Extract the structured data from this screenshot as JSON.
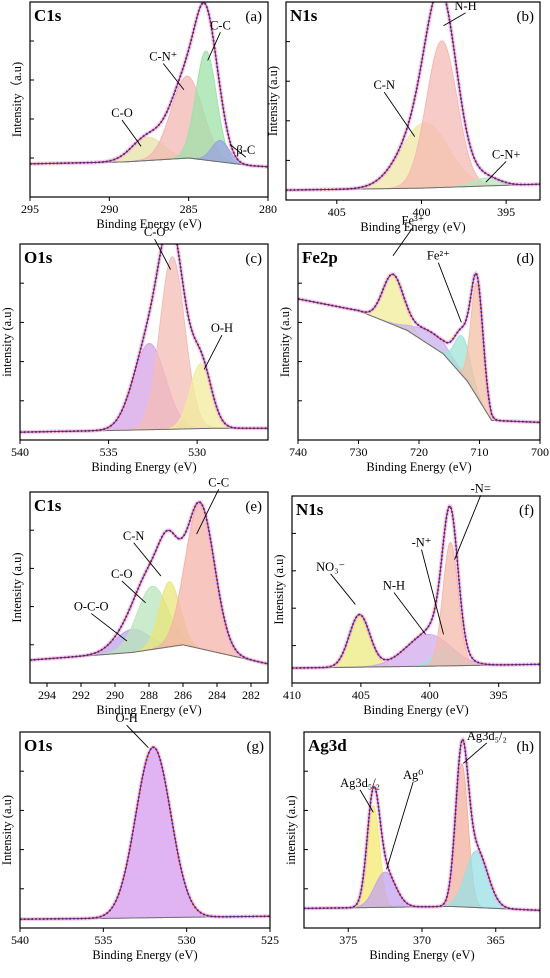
{
  "chart_data": [
    {
      "panel": "a",
      "letter": "(a)",
      "title": "C1s",
      "type": "area",
      "xlabel": "Binding Energy (eV)",
      "ylabel": "Intensity（a.u)",
      "xlim": [
        295,
        280
      ],
      "xticks": [
        295,
        290,
        285,
        280
      ],
      "ylim": [
        0,
        1
      ],
      "baseline": [
        [
          295,
          0.17
        ],
        [
          289,
          0.18
        ],
        [
          285,
          0.2
        ],
        [
          281,
          0.16
        ],
        [
          280,
          0.155
        ]
      ],
      "peaks": [
        {
          "label": "C-O",
          "center": 287.6,
          "height": 0.12,
          "width": 1.0,
          "color": "#e6e3a6"
        },
        {
          "label": "C-N⁺",
          "center": 285.1,
          "height": 0.42,
          "width": 1.0,
          "color": "#f2b8b3"
        },
        {
          "label": "C-C",
          "center": 283.9,
          "height": 0.56,
          "width": 0.65,
          "color": "#9de2a8"
        },
        {
          "label": "β-C",
          "center": 283.0,
          "height": 0.11,
          "width": 0.55,
          "color": "#9aa3e3"
        }
      ],
      "annotations": [
        {
          "text": "C-O",
          "x": 289.2,
          "y": 0.41,
          "ax": 288.0,
          "ay": 0.26
        },
        {
          "text": "C-N⁺",
          "x": 286.6,
          "y": 0.7,
          "ax": 285.3,
          "ay": 0.55
        },
        {
          "text": "C-C",
          "x": 283.0,
          "y": 0.86,
          "ax": 283.8,
          "ay": 0.7
        },
        {
          "text": "β-C",
          "x": 281.4,
          "y": 0.22,
          "ax": 282.4,
          "ay": 0.27
        }
      ]
    },
    {
      "panel": "b",
      "letter": "(b)",
      "title": "N1s",
      "type": "area",
      "xlabel": "Binding Energy (eV)",
      "ylabel": "Intensity (a.u)",
      "xlim": [
        408,
        393
      ],
      "xticks": [
        405,
        400,
        395
      ],
      "ylim": [
        0,
        1
      ],
      "baseline": [
        [
          408,
          0.05
        ],
        [
          400,
          0.06
        ],
        [
          393,
          0.08
        ]
      ],
      "peaks": [
        {
          "label": "C-N",
          "center": 399.8,
          "height": 0.33,
          "width": 1.4,
          "color": "#f1e6a6"
        },
        {
          "label": "N-H",
          "center": 398.8,
          "height": 0.74,
          "width": 0.9,
          "color": "#f4b9b4"
        },
        {
          "label": "C-N+",
          "center": 396.2,
          "height": 0.04,
          "width": 0.8,
          "color": "#b8e6c0"
        }
      ],
      "annotations": [
        {
          "text": "C-N",
          "x": 402.2,
          "y": 0.56,
          "ax": 400.4,
          "ay": 0.32
        },
        {
          "text": "N-H",
          "x": 397.4,
          "y": 0.96,
          "ax": 398.7,
          "ay": 0.88
        },
        {
          "text": "C-N+",
          "x": 395.0,
          "y": 0.21,
          "ax": 396.2,
          "ay": 0.09
        }
      ]
    },
    {
      "panel": "c",
      "letter": "(c)",
      "title": "O1s",
      "type": "area",
      "xlabel": "Binding Energy (eV)",
      "ylabel": "intensity (a.u)",
      "xlim": [
        540,
        526
      ],
      "xticks": [
        540,
        535,
        530
      ],
      "ylim": [
        0,
        1
      ],
      "baseline": [
        [
          540,
          0.04
        ],
        [
          534,
          0.05
        ],
        [
          529,
          0.06
        ],
        [
          526,
          0.06
        ]
      ],
      "peaks": [
        {
          "label": "",
          "center": 532.7,
          "height": 0.44,
          "width": 0.9,
          "color": "#d6a3e6"
        },
        {
          "label": "C-O",
          "center": 531.4,
          "height": 0.88,
          "width": 0.7,
          "color": "#f4bcb6"
        },
        {
          "label": "O-H",
          "center": 529.8,
          "height": 0.33,
          "width": 0.6,
          "color": "#f2ec9c"
        }
      ],
      "annotations": [
        {
          "text": "C-O",
          "x": 532.4,
          "y": 1.04,
          "ax": 531.5,
          "ay": 0.87
        },
        {
          "text": "O-H",
          "x": 528.6,
          "y": 0.55,
          "ax": 529.6,
          "ay": 0.36
        }
      ]
    },
    {
      "panel": "d",
      "letter": "(d)",
      "title": "Fe2p",
      "type": "area",
      "xlabel": "Binding Energy (eV)",
      "ylabel": "Intensity (a.u)",
      "xlim": [
        740,
        700
      ],
      "xticks": [
        740,
        730,
        720,
        710,
        700
      ],
      "ylim": [
        0,
        1
      ],
      "baseline": [
        [
          740,
          0.72
        ],
        [
          730,
          0.66
        ],
        [
          722,
          0.56
        ],
        [
          716,
          0.44
        ],
        [
          712,
          0.3
        ],
        [
          710,
          0.2
        ],
        [
          708,
          0.1
        ],
        [
          700,
          0.09
        ]
      ],
      "peaks": [
        {
          "label": "",
          "center": 724.3,
          "height": 0.25,
          "width": 1.7,
          "color": "#f1ec99"
        },
        {
          "label": "",
          "center": 717.8,
          "height": 0.07,
          "width": 3.0,
          "color": "#c8b1ef"
        },
        {
          "label": "",
          "center": 712.8,
          "height": 0.2,
          "width": 1.3,
          "color": "#9fe4d7"
        },
        {
          "label": "",
          "center": 710.4,
          "height": 0.58,
          "width": 1.0,
          "color": "#f3c0a4"
        }
      ],
      "annotations": [
        {
          "text": "Fe³⁺",
          "x": 721.0,
          "y": 1.1,
          "ax": 724.3,
          "ay": 0.94
        },
        {
          "text": "Fe²⁺",
          "x": 716.8,
          "y": 0.92,
          "ax": 713.0,
          "ay": 0.6
        }
      ]
    },
    {
      "panel": "e",
      "letter": "(e)",
      "title": "C1s",
      "type": "area",
      "xlabel": "Binding Energy (eV)",
      "ylabel": "Intensity (a.u)",
      "xlim": [
        295,
        281
      ],
      "xticks": [
        294,
        292,
        290,
        288,
        286,
        284,
        282
      ],
      "ylim": [
        0,
        1
      ],
      "baseline": [
        [
          295,
          0.12
        ],
        [
          289,
          0.16
        ],
        [
          286,
          0.2
        ],
        [
          283,
          0.14
        ],
        [
          281,
          0.1
        ]
      ],
      "peaks": [
        {
          "label": "O-C-O",
          "center": 289.0,
          "height": 0.12,
          "width": 1.0,
          "color": "#b9a6e8"
        },
        {
          "label": "C-O",
          "center": 287.8,
          "height": 0.33,
          "width": 0.9,
          "color": "#b9e6bb"
        },
        {
          "label": "C-N",
          "center": 286.8,
          "height": 0.34,
          "width": 0.6,
          "color": "#e9e67a"
        },
        {
          "label": "C-C",
          "center": 285.0,
          "height": 0.76,
          "width": 0.85,
          "color": "#f4b3a9"
        }
      ],
      "annotations": [
        {
          "text": "O-C-O",
          "x": 291.4,
          "y": 0.38,
          "ax": 289.3,
          "ay": 0.22
        },
        {
          "text": "C-O",
          "x": 289.6,
          "y": 0.55,
          "ax": 288.2,
          "ay": 0.42
        },
        {
          "text": "C-N",
          "x": 288.9,
          "y": 0.75,
          "ax": 287.3,
          "ay": 0.56
        },
        {
          "text": "C-C",
          "x": 283.9,
          "y": 1.03,
          "ax": 285.2,
          "ay": 0.78
        }
      ]
    },
    {
      "panel": "f",
      "letter": "(f)",
      "title": "N1s",
      "type": "area",
      "xlabel": "Binding Energy (eV)",
      "ylabel": "Intensity (a.u)",
      "xlim": [
        410,
        392
      ],
      "xticks": [
        410,
        405,
        400,
        395
      ],
      "ylim": [
        0,
        1
      ],
      "baseline": [
        [
          410,
          0.08
        ],
        [
          400,
          0.09
        ],
        [
          392,
          0.1
        ]
      ],
      "peaks": [
        {
          "label": "NO₃⁻",
          "center": 405.1,
          "height": 0.28,
          "width": 0.75,
          "color": "#eceb80"
        },
        {
          "label": "N-H",
          "center": 400.1,
          "height": 0.17,
          "width": 1.6,
          "color": "#d3a9ec"
        },
        {
          "label": "-N⁺",
          "center": 398.9,
          "height": 0.1,
          "width": 0.8,
          "color": "#9ee2e4"
        },
        {
          "label": "-N=",
          "center": 398.5,
          "height": 0.66,
          "width": 0.55,
          "color": "#f4b9a9"
        }
      ],
      "annotations": [
        {
          "text": "NO₃⁻",
          "x": 407.2,
          "y": 0.6,
          "ax": 405.4,
          "ay": 0.42
        },
        {
          "text": "N-H",
          "x": 402.6,
          "y": 0.5,
          "ax": 400.3,
          "ay": 0.26
        },
        {
          "text": "-N⁺",
          "x": 400.6,
          "y": 0.73,
          "ax": 399.0,
          "ay": 0.26
        },
        {
          "text": "-N=",
          "x": 396.3,
          "y": 1.02,
          "ax": 398.2,
          "ay": 0.66
        }
      ]
    },
    {
      "panel": "g",
      "letter": "(g)",
      "title": "O1s",
      "type": "area",
      "xlabel": "Binding Energy (eV)",
      "ylabel": "Intensity (a.u)",
      "xlim": [
        540,
        525
      ],
      "xticks": [
        540,
        535,
        530,
        525
      ],
      "ylim": [
        0,
        1
      ],
      "baseline": [
        [
          540,
          0.045
        ],
        [
          534,
          0.05
        ],
        [
          530,
          0.055
        ],
        [
          525,
          0.06
        ]
      ],
      "peaks": [
        {
          "label": "O-H",
          "center": 532.0,
          "height": 0.87,
          "width": 1.05,
          "color": "#d69bef"
        }
      ],
      "annotations": [
        {
          "text": "O-H",
          "x": 533.6,
          "y": 1.05,
          "ax": 532.3,
          "ay": 0.92
        }
      ]
    },
    {
      "panel": "h",
      "letter": "(h)",
      "title": "Ag3d",
      "type": "area",
      "xlabel": "Binding Energy (eV)",
      "ylabel": "intensity (a.u)",
      "xlim": [
        378,
        362
      ],
      "xticks": [
        375,
        370,
        365
      ],
      "ylim": [
        0,
        1
      ],
      "baseline": [
        [
          378,
          0.1
        ],
        [
          368,
          0.11
        ],
        [
          362,
          0.09
        ]
      ],
      "peaks": [
        {
          "label": "",
          "center": 373.3,
          "height": 0.52,
          "width": 0.42,
          "color": "#f4e96d"
        },
        {
          "label": "",
          "center": 372.5,
          "height": 0.18,
          "width": 0.7,
          "color": "#c6a3ef"
        },
        {
          "label": "",
          "center": 367.3,
          "height": 0.73,
          "width": 0.42,
          "color": "#f2b09e"
        },
        {
          "label": "",
          "center": 366.3,
          "height": 0.29,
          "width": 0.75,
          "color": "#98e0e5"
        }
      ],
      "annotations": [
        {
          "text": "Ag3d₅/₂",
          "x": 374.2,
          "y": 0.72,
          "ax": 373.3,
          "ay": 0.59
        },
        {
          "text": "Ag⁰",
          "x": 370.6,
          "y": 0.76,
          "ax": 372.4,
          "ay": 0.3
        },
        {
          "text": "Ag3d₅/₂",
          "x": 365.6,
          "y": 0.96,
          "ax": 367.2,
          "ay": 0.84
        }
      ]
    }
  ]
}
